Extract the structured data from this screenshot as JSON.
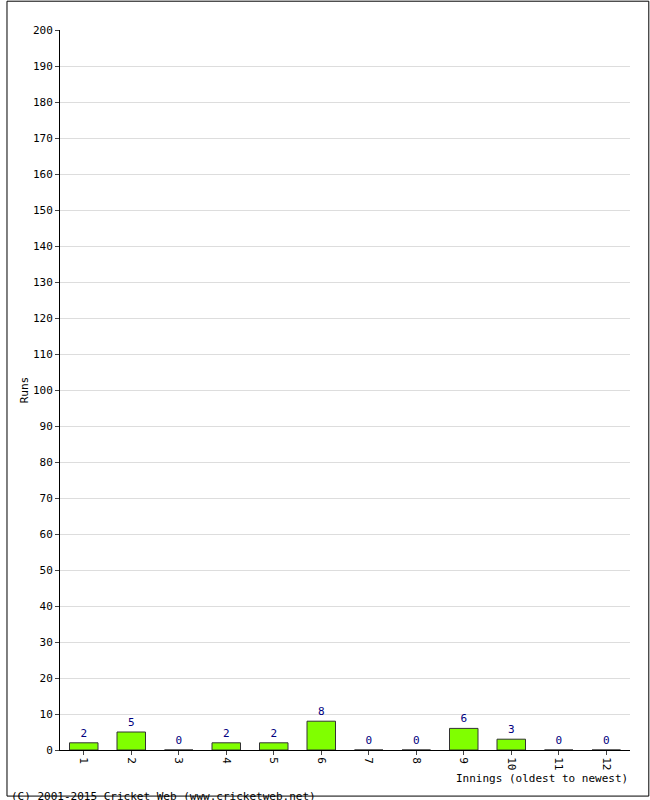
{
  "chart_data": {
    "type": "bar",
    "x_label": "Innings (oldest to newest)",
    "y_label": "Runs",
    "annotations": [
      "(C) 2001-2015 Cricket Web (www.cricketweb.net)"
    ],
    "categories": [
      "1",
      "2",
      "3",
      "4",
      "5",
      "6",
      "7",
      "8",
      "9",
      "10",
      "11",
      "12"
    ],
    "values": [
      2,
      5,
      0,
      2,
      2,
      8,
      0,
      0,
      6,
      3,
      0,
      0
    ],
    "color": "#80ff00",
    "ylim": [
      0,
      200
    ],
    "yticks": [
      0,
      10,
      20,
      30,
      40,
      50,
      60,
      70,
      80,
      90,
      100,
      110,
      120,
      130,
      140,
      150,
      160,
      170,
      180,
      190,
      200
    ],
    "grid": true,
    "data_labels": true
  }
}
